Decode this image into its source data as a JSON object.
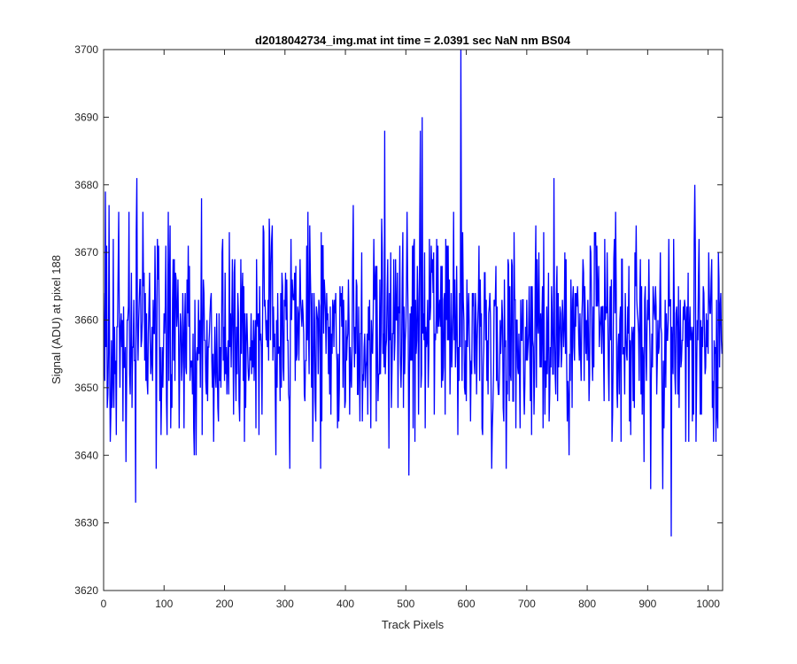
{
  "chart_data": {
    "type": "line",
    "title": "d2018042734_img.mat int time = 2.0391 sec  NaN nm BS04",
    "xlabel": "Track Pixels",
    "ylabel": "Signal (ADU) at pixel 188",
    "xlim": [
      0,
      1024
    ],
    "ylim": [
      3620,
      3700
    ],
    "xticks": [
      0,
      100,
      200,
      300,
      400,
      500,
      600,
      700,
      800,
      900,
      1000
    ],
    "yticks": [
      3620,
      3630,
      3640,
      3650,
      3660,
      3670,
      3680,
      3690,
      3700
    ],
    "grid": false,
    "legend": "none",
    "series_color": "#0000ff",
    "series": [
      {
        "n_points": 1024,
        "baseline_mean": 3658,
        "noise_std": 7.5,
        "notable_points": [
          {
            "x": 3,
            "y": 3679
          },
          {
            "x": 9,
            "y": 3677
          },
          {
            "x": 21,
            "y": 3643
          },
          {
            "x": 37,
            "y": 3639
          },
          {
            "x": 53,
            "y": 3633
          },
          {
            "x": 55,
            "y": 3681
          },
          {
            "x": 95,
            "y": 3643
          },
          {
            "x": 162,
            "y": 3678
          },
          {
            "x": 413,
            "y": 3677
          },
          {
            "x": 465,
            "y": 3688
          },
          {
            "x": 505,
            "y": 3637
          },
          {
            "x": 524,
            "y": 3688
          },
          {
            "x": 527,
            "y": 3690
          },
          {
            "x": 591,
            "y": 3700
          },
          {
            "x": 745,
            "y": 3681
          },
          {
            "x": 905,
            "y": 3635
          },
          {
            "x": 925,
            "y": 3635
          },
          {
            "x": 939,
            "y": 3628
          },
          {
            "x": 978,
            "y": 3680
          },
          {
            "x": 1013,
            "y": 3642
          }
        ]
      }
    ]
  }
}
